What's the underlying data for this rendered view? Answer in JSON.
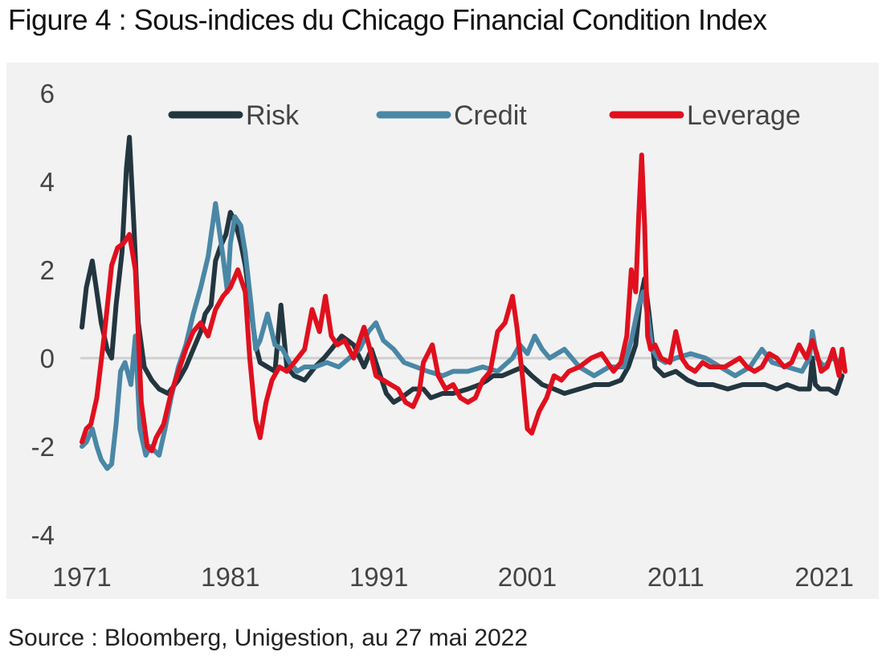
{
  "title": "Figure 4 : Sous-indices du Chicago Financial Condition Index",
  "source": "Source : Bloomberg, Unigestion, au 27 mai 2022",
  "colors": {
    "Risk": "#233640",
    "Credit": "#4a87a6",
    "Leverage": "#e0101e",
    "zero_line": "#cfcfcf",
    "panel": "#f2f2f2"
  },
  "chart_data": {
    "type": "line",
    "title": "Figure 4 : Sous-indices du Chicago Financial Condition Index",
    "xlabel": "",
    "ylabel": "",
    "xlim": [
      1971,
      2022.4
    ],
    "ylim": [
      -4,
      6
    ],
    "x_ticks": [
      1971,
      1981,
      1991,
      2001,
      2011,
      2021
    ],
    "x_tick_labels": [
      "1971",
      "1981",
      "1991",
      "2001",
      "2011",
      "2021"
    ],
    "y_ticks": [
      -4,
      -2,
      0,
      2,
      4,
      6
    ],
    "y_tick_labels": [
      "-4",
      "-2",
      "0",
      "2",
      "4",
      "6"
    ],
    "grid": false,
    "legend_position": "top",
    "series": [
      {
        "name": "Risk",
        "x": [
          1971.0,
          1971.3,
          1971.7,
          1972.0,
          1972.3,
          1972.7,
          1973.0,
          1973.3,
          1973.7,
          1974.0,
          1974.2,
          1974.5,
          1974.8,
          1975.2,
          1975.7,
          1976.2,
          1976.8,
          1977.5,
          1978.0,
          1978.5,
          1979.0,
          1979.3,
          1979.7,
          1980.0,
          1980.3,
          1980.7,
          1981.0,
          1981.3,
          1981.7,
          1982.0,
          1982.3,
          1982.7,
          1983.0,
          1983.5,
          1984.0,
          1984.4,
          1984.8,
          1985.3,
          1986.0,
          1986.7,
          1987.3,
          1987.8,
          1988.5,
          1989.3,
          1990.0,
          1990.5,
          1991.0,
          1991.5,
          1992.0,
          1992.5,
          1993.3,
          1994.0,
          1994.5,
          1995.3,
          1996.0,
          1997.0,
          1997.8,
          1998.3,
          1998.7,
          1999.3,
          2000.0,
          2000.7,
          2001.3,
          2002.0,
          2002.8,
          2003.5,
          2004.5,
          2005.5,
          2006.5,
          2007.3,
          2007.8,
          2008.3,
          2008.6,
          2008.9,
          2009.2,
          2009.6,
          2010.2,
          2011.0,
          2011.8,
          2012.5,
          2013.5,
          2014.5,
          2015.5,
          2016.3,
          2017.0,
          2017.8,
          2018.5,
          2019.3,
          2020.0,
          2020.2,
          2020.4,
          2020.7,
          2021.3,
          2021.8,
          2022.2
        ],
        "values": [
          0.7,
          1.6,
          2.2,
          1.5,
          0.8,
          0.2,
          0.0,
          1.2,
          2.4,
          4.3,
          5.0,
          3.0,
          0.8,
          -0.2,
          -0.5,
          -0.7,
          -0.8,
          -0.5,
          -0.2,
          0.2,
          0.6,
          1.0,
          1.2,
          2.2,
          2.5,
          2.8,
          3.3,
          3.1,
          2.6,
          2.1,
          1.3,
          0.3,
          -0.1,
          -0.2,
          -0.3,
          1.2,
          -0.2,
          -0.4,
          -0.5,
          -0.2,
          0.0,
          0.2,
          0.5,
          0.3,
          -0.2,
          0.2,
          -0.3,
          -0.8,
          -1.0,
          -0.9,
          -0.7,
          -0.7,
          -0.9,
          -0.8,
          -0.8,
          -0.7,
          -0.6,
          -0.5,
          -0.4,
          -0.4,
          -0.3,
          -0.2,
          -0.4,
          -0.6,
          -0.7,
          -0.8,
          -0.7,
          -0.6,
          -0.6,
          -0.5,
          -0.2,
          0.3,
          1.3,
          1.8,
          1.0,
          -0.2,
          -0.4,
          -0.3,
          -0.5,
          -0.6,
          -0.6,
          -0.7,
          -0.6,
          -0.6,
          -0.6,
          -0.7,
          -0.6,
          -0.7,
          -0.7,
          0.0,
          -0.6,
          -0.7,
          -0.7,
          -0.8,
          -0.4
        ]
      },
      {
        "name": "Credit",
        "x": [
          1971.0,
          1971.3,
          1971.7,
          1972.0,
          1972.3,
          1972.7,
          1973.0,
          1973.3,
          1973.6,
          1973.9,
          1974.3,
          1974.6,
          1974.9,
          1975.3,
          1975.6,
          1976.2,
          1976.6,
          1977.0,
          1977.5,
          1978.0,
          1978.5,
          1979.0,
          1979.5,
          1980.0,
          1980.5,
          1980.8,
          1981.0,
          1981.3,
          1981.7,
          1982.0,
          1982.4,
          1982.7,
          1983.0,
          1983.5,
          1984.0,
          1984.5,
          1985.0,
          1985.5,
          1986.0,
          1986.7,
          1987.5,
          1988.3,
          1989.0,
          1989.7,
          1990.3,
          1990.8,
          1991.3,
          1992.0,
          1992.7,
          1993.5,
          1994.3,
          1995.3,
          1996.0,
          1997.0,
          1998.0,
          1999.0,
          2000.0,
          2000.5,
          2001.0,
          2001.5,
          2002.0,
          2002.5,
          2003.0,
          2003.5,
          2004.5,
          2005.5,
          2006.5,
          2007.5,
          2008.0,
          2008.5,
          2008.8,
          2009.1,
          2009.4,
          2009.8,
          2010.3,
          2011.0,
          2012.0,
          2013.0,
          2014.0,
          2015.0,
          2016.0,
          2016.8,
          2017.5,
          2018.5,
          2019.5,
          2020.0,
          2020.2,
          2020.5,
          2021.0,
          2021.5,
          2022.2
        ],
        "values": [
          -2.0,
          -1.9,
          -1.6,
          -2.0,
          -2.3,
          -2.5,
          -2.4,
          -1.5,
          -0.3,
          -0.1,
          -0.6,
          0.5,
          -1.6,
          -2.2,
          -2.0,
          -2.2,
          -1.6,
          -0.9,
          -0.2,
          0.3,
          1.0,
          1.6,
          2.3,
          3.5,
          2.3,
          1.5,
          2.6,
          3.2,
          3.0,
          2.4,
          1.2,
          0.2,
          0.4,
          1.0,
          0.3,
          0.2,
          -0.1,
          -0.3,
          -0.2,
          -0.2,
          -0.1,
          -0.2,
          0.0,
          0.2,
          0.6,
          0.8,
          0.4,
          0.2,
          -0.1,
          -0.2,
          -0.3,
          -0.4,
          -0.3,
          -0.3,
          -0.2,
          -0.3,
          0.0,
          0.3,
          0.1,
          0.5,
          0.2,
          0.0,
          0.1,
          0.2,
          -0.2,
          -0.4,
          -0.2,
          -0.2,
          0.4,
          1.2,
          1.5,
          1.0,
          0.2,
          0.0,
          -0.1,
          0.0,
          0.1,
          0.0,
          -0.2,
          -0.4,
          -0.2,
          0.2,
          -0.1,
          -0.2,
          -0.3,
          0.0,
          0.6,
          0.0,
          -0.2,
          0.0,
          -0.1
        ]
      },
      {
        "name": "Leverage",
        "x": [
          1971.0,
          1971.3,
          1971.6,
          1972.0,
          1972.5,
          1973.0,
          1973.4,
          1973.8,
          1974.2,
          1974.6,
          1975.0,
          1975.4,
          1975.7,
          1976.0,
          1976.5,
          1977.0,
          1977.5,
          1978.0,
          1978.5,
          1979.0,
          1979.5,
          1980.0,
          1980.5,
          1981.0,
          1981.5,
          1982.0,
          1982.3,
          1982.7,
          1983.0,
          1983.4,
          1983.8,
          1984.3,
          1984.8,
          1985.3,
          1986.0,
          1986.5,
          1987.0,
          1987.4,
          1987.8,
          1988.2,
          1988.7,
          1989.3,
          1990.0,
          1990.4,
          1990.8,
          1991.3,
          1991.8,
          1992.3,
          1992.8,
          1993.3,
          1993.7,
          1994.0,
          1994.6,
          1995.0,
          1995.5,
          1996.0,
          1996.5,
          1997.0,
          1997.5,
          1998.0,
          1998.5,
          1999.0,
          1999.5,
          2000.0,
          2000.3,
          2000.7,
          2001.0,
          2001.3,
          2001.8,
          2002.3,
          2002.8,
          2003.3,
          2003.8,
          2004.5,
          2005.3,
          2006.0,
          2006.8,
          2007.3,
          2007.7,
          2008.0,
          2008.3,
          2008.5,
          2008.7,
          2008.9,
          2009.1,
          2009.3,
          2009.6,
          2010.0,
          2010.6,
          2011.0,
          2011.4,
          2011.8,
          2012.3,
          2012.8,
          2013.3,
          2013.8,
          2014.3,
          2014.8,
          2015.3,
          2015.8,
          2016.3,
          2016.8,
          2017.3,
          2017.8,
          2018.3,
          2018.8,
          2019.3,
          2019.8,
          2020.2,
          2020.5,
          2020.8,
          2021.2,
          2021.6,
          2022.0,
          2022.2,
          2022.4
        ],
        "values": [
          -1.9,
          -1.6,
          -1.5,
          -0.9,
          0.5,
          2.1,
          2.5,
          2.6,
          2.8,
          2.0,
          -1.0,
          -2.0,
          -2.1,
          -1.8,
          -1.5,
          -0.8,
          -0.3,
          0.2,
          0.6,
          0.8,
          0.5,
          1.1,
          1.4,
          1.6,
          2.0,
          1.5,
          0.0,
          -1.4,
          -1.8,
          -1.0,
          -0.5,
          -0.2,
          -0.3,
          -0.1,
          0.2,
          1.1,
          0.6,
          1.4,
          0.5,
          0.3,
          0.4,
          0.0,
          0.7,
          0.2,
          -0.4,
          -0.5,
          -0.6,
          -0.7,
          -1.0,
          -1.1,
          -0.8,
          -0.1,
          0.3,
          -0.4,
          -0.7,
          -0.6,
          -0.9,
          -1.0,
          -0.9,
          -0.5,
          -0.3,
          0.6,
          0.8,
          1.4,
          0.7,
          -0.5,
          -1.6,
          -1.7,
          -1.2,
          -0.9,
          -0.4,
          -0.5,
          -0.3,
          -0.2,
          0.0,
          0.1,
          -0.3,
          -0.1,
          0.5,
          2.0,
          1.5,
          3.2,
          4.6,
          3.0,
          0.5,
          0.2,
          0.3,
          0.0,
          -0.1,
          0.6,
          0.0,
          -0.2,
          -0.3,
          -0.1,
          -0.2,
          -0.2,
          -0.2,
          -0.1,
          0.0,
          -0.2,
          -0.3,
          -0.2,
          0.1,
          0.0,
          -0.2,
          -0.1,
          0.3,
          0.0,
          0.4,
          0.1,
          -0.3,
          -0.2,
          0.2,
          -0.4,
          0.2,
          -0.3
        ]
      }
    ]
  }
}
